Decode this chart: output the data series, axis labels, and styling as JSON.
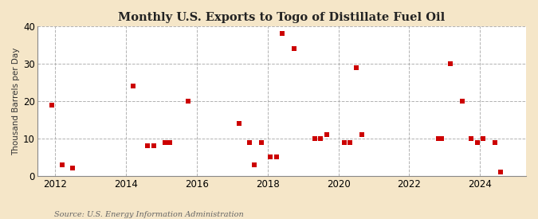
{
  "title": "Monthly U.S. Exports to Togo of Distillate Fuel Oil",
  "ylabel": "Thousand Barrels per Day",
  "source": "Source: U.S. Energy Information Administration",
  "background_color": "#f5e6c8",
  "plot_background": "#ffffff",
  "marker_color": "#cc0000",
  "marker_size": 16,
  "xlim": [
    2011.5,
    2025.3
  ],
  "ylim": [
    0,
    40
  ],
  "yticks": [
    0,
    10,
    20,
    30,
    40
  ],
  "xticks": [
    2012,
    2014,
    2016,
    2018,
    2020,
    2022,
    2024
  ],
  "data_points": [
    [
      2011.92,
      19
    ],
    [
      2012.2,
      3
    ],
    [
      2012.5,
      2
    ],
    [
      2014.2,
      24
    ],
    [
      2014.6,
      8
    ],
    [
      2014.8,
      8
    ],
    [
      2015.1,
      9
    ],
    [
      2015.25,
      9
    ],
    [
      2015.75,
      20
    ],
    [
      2017.2,
      14
    ],
    [
      2017.5,
      9
    ],
    [
      2017.62,
      3
    ],
    [
      2017.83,
      9
    ],
    [
      2018.08,
      5
    ],
    [
      2018.25,
      5
    ],
    [
      2018.42,
      38
    ],
    [
      2018.75,
      34
    ],
    [
      2019.33,
      10
    ],
    [
      2019.5,
      10
    ],
    [
      2019.67,
      11
    ],
    [
      2020.17,
      9
    ],
    [
      2020.33,
      9
    ],
    [
      2020.5,
      29
    ],
    [
      2020.67,
      11
    ],
    [
      2022.83,
      10
    ],
    [
      2022.92,
      10
    ],
    [
      2023.17,
      30
    ],
    [
      2023.5,
      20
    ],
    [
      2023.75,
      10
    ],
    [
      2023.92,
      9
    ],
    [
      2024.08,
      10
    ],
    [
      2024.42,
      9
    ],
    [
      2024.58,
      1
    ]
  ]
}
